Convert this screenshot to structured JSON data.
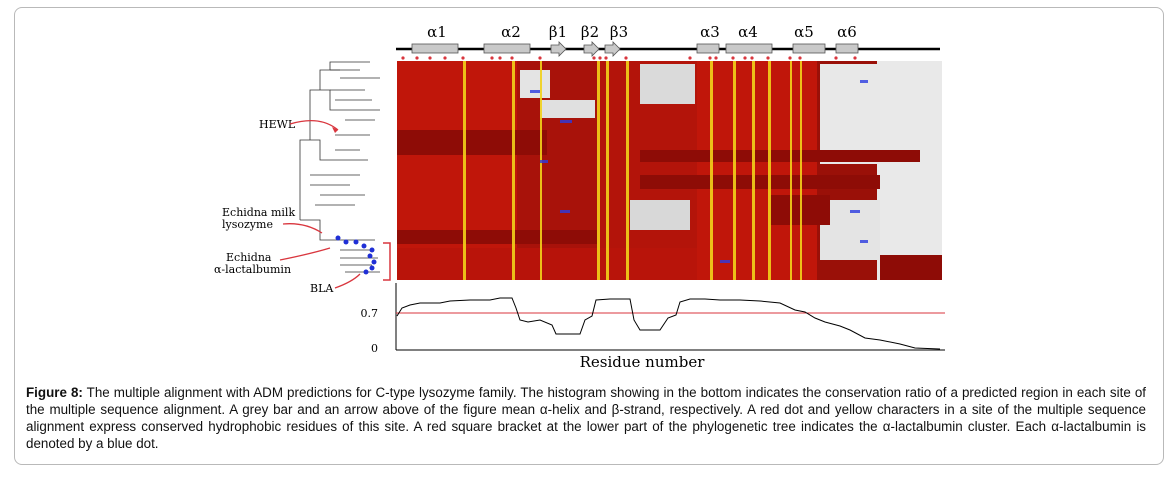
{
  "secondary_structure": {
    "helix_labels": [
      "α1",
      "α2",
      "α3",
      "α4",
      "α5",
      "α6"
    ],
    "strand_labels": [
      "β1",
      "β2",
      "β3"
    ]
  },
  "tree_annotations": {
    "hewl": "HEWL",
    "echidna_milk_line1": "Echidna milk",
    "echidna_milk_line2": "lysozyme",
    "echidna_alac_line1": "Echidna",
    "echidna_alac_line2": "α-lactalbumin",
    "bla": "BLA"
  },
  "histogram": {
    "ytick_high": "0.7",
    "ytick_low": "0",
    "xlabel": "Residue number",
    "threshold_color": "#d9363e"
  },
  "caption": {
    "label": "Figure 8:",
    "text": " The multiple alignment with ADM predictions for C-type lysozyme family. The histogram showing in the bottom indicates the conservation ratio of a predicted region in each site of the multiple sequence alignment. A grey bar and an arrow above of the figure mean α-helix and β-strand, respectively. A red dot and yellow characters in a site of the multiple sequence alignment express conserved hydrophobic residues of this site. A red square bracket at the lower part of the phylogenetic tree indicates the α-lactalbumin cluster. Each α-lactalbumin is denoted by a blue dot."
  },
  "colors": {
    "alignment_dark": "#8e0c06",
    "alignment_red": "#c0160a",
    "conserved_yellow": "#f2d21a",
    "blue_dot": "#1f2fd6",
    "helix_grey": "#c9c9c9"
  }
}
